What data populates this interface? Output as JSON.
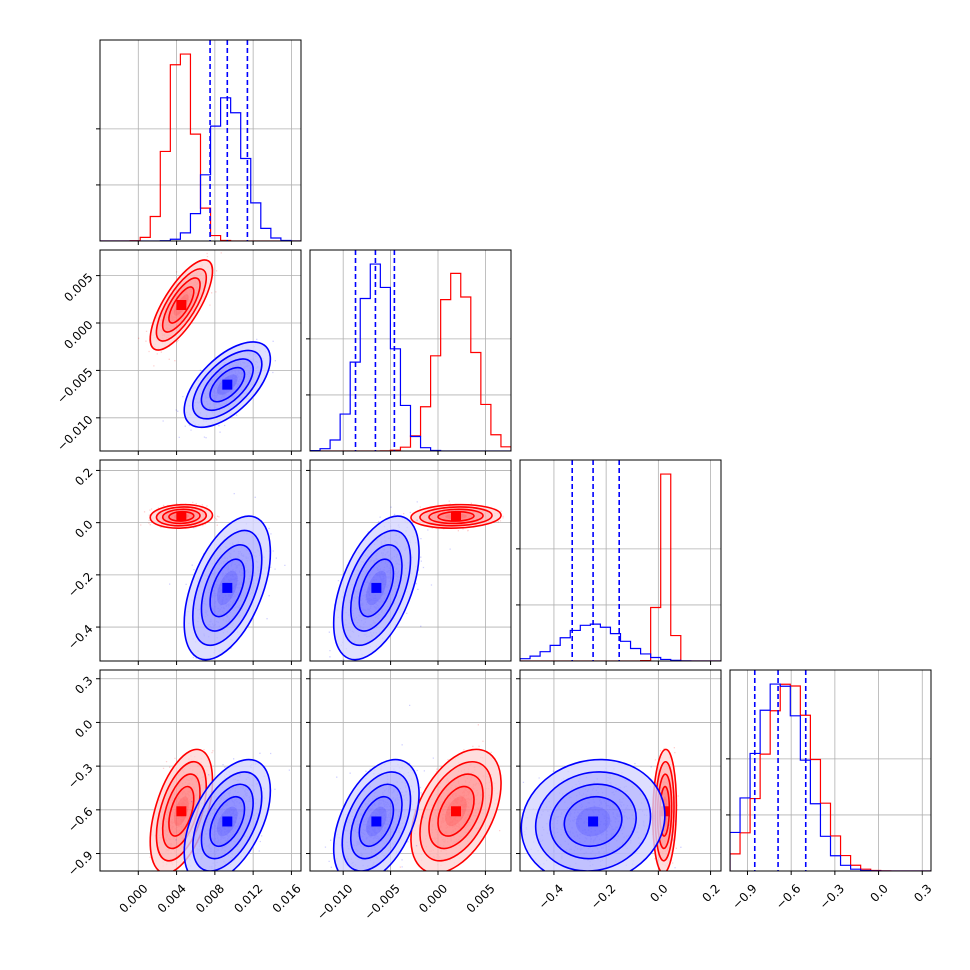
{
  "chart_data": {
    "type": "corner",
    "parameter_count": 4,
    "grid": true,
    "colors": {
      "red": "#ff0000",
      "blue": "#0000ff",
      "grid": "#b0b0b0"
    },
    "axes": [
      {
        "range": [
          -0.004,
          0.017
        ],
        "ticks": [
          "0.000",
          "0.004",
          "0.008",
          "0.012",
          "0.016"
        ],
        "tick_values": [
          0.0,
          0.004,
          0.008,
          0.012,
          0.016
        ]
      },
      {
        "range": [
          -0.0135,
          0.0077
        ],
        "ticks": [
          "−0.010",
          "−0.005",
          "0.000",
          "0.005"
        ],
        "tick_values": [
          -0.01,
          -0.005,
          0.0,
          0.005
        ]
      },
      {
        "range": [
          -0.53,
          0.24
        ],
        "ticks": [
          "−0.4",
          "−0.2",
          "0.0",
          "0.2"
        ],
        "tick_values": [
          -0.4,
          -0.2,
          0.0,
          0.2
        ]
      },
      {
        "range": [
          -1.02,
          0.36
        ],
        "ticks": [
          "−0.9",
          "−0.6",
          "−0.3",
          "0.0",
          "0.3"
        ],
        "tick_values": [
          -0.9,
          -0.6,
          -0.3,
          0.0,
          0.3
        ]
      }
    ],
    "series": [
      {
        "color": "red",
        "mean": [
          0.0045,
          0.0019,
          0.024,
          -0.61
        ],
        "std": [
          0.0013,
          0.0019,
          0.018,
          0.17
        ],
        "corr": [
          [
            1,
            0.75,
            0.1,
            0.5
          ],
          [
            0.75,
            1,
            0.1,
            0.45
          ],
          [
            0.1,
            0.1,
            1,
            0.1
          ],
          [
            0.5,
            0.45,
            0.1,
            1
          ]
        ]
      },
      {
        "color": "blue",
        "mean": [
          0.0093,
          -0.0065,
          -0.25,
          -0.68
        ],
        "std": [
          0.0018,
          0.0018,
          0.11,
          0.17
        ],
        "corr": [
          [
            1,
            0.6,
            0.5,
            0.5
          ],
          [
            0.6,
            1,
            0.5,
            0.45
          ],
          [
            0.5,
            0.5,
            1,
            0.1
          ],
          [
            0.5,
            0.45,
            0.1,
            1
          ]
        ]
      }
    ],
    "quantile_lines": {
      "color": "blue",
      "values": [
        [
          0.0075,
          0.0093,
          0.0114
        ],
        [
          -0.0087,
          -0.0066,
          -0.0046
        ],
        [
          -0.33,
          -0.25,
          -0.15
        ],
        [
          -0.85,
          -0.69,
          -0.5
        ]
      ]
    }
  }
}
